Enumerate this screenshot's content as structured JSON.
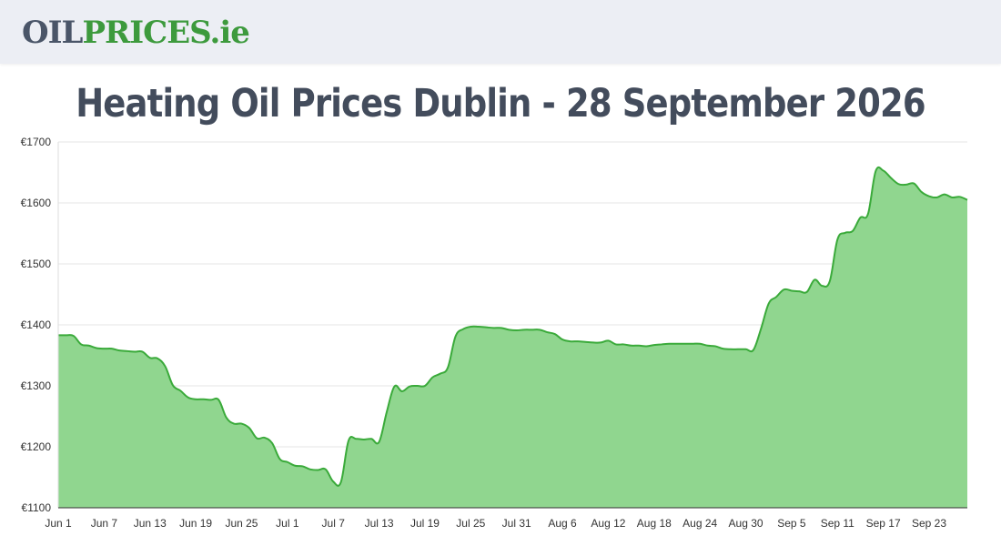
{
  "header": {
    "logo_part1": "OIL",
    "logo_part2": "PRICES",
    "logo_part3": ".ie"
  },
  "title": "Heating Oil Prices Dublin - 28 September 2026",
  "chart_data": {
    "type": "area",
    "title": "Heating Oil Prices Dublin - 28 September 2026",
    "xlabel": "",
    "ylabel": "",
    "ylim": [
      1100,
      1700
    ],
    "grid": true,
    "legend": "none",
    "colors": {
      "fill": "#90d68f",
      "line": "#3aaa3a",
      "grid": "#e6e6e6",
      "axis": "#333333"
    },
    "yticks": [
      1100,
      1200,
      1300,
      1400,
      1500,
      1600,
      1700
    ],
    "ytick_labels": [
      "€1100",
      "€1200",
      "€1300",
      "€1400",
      "€1500",
      "€1600",
      "€1700"
    ],
    "xticks": [
      "Jun 1",
      "Jun 7",
      "Jun 13",
      "Jun 19",
      "Jun 25",
      "Jul 1",
      "Jul 7",
      "Jul 13",
      "Jul 19",
      "Jul 25",
      "Jul 31",
      "Aug 6",
      "Aug 12",
      "Aug 18",
      "Aug 24",
      "Aug 30",
      "Sep 5",
      "Sep 11",
      "Sep 17",
      "Sep 23"
    ],
    "x": [
      "Jun 1",
      "Jun 2",
      "Jun 3",
      "Jun 4",
      "Jun 5",
      "Jun 6",
      "Jun 7",
      "Jun 8",
      "Jun 9",
      "Jun 10",
      "Jun 11",
      "Jun 12",
      "Jun 13",
      "Jun 14",
      "Jun 15",
      "Jun 16",
      "Jun 17",
      "Jun 18",
      "Jun 19",
      "Jun 20",
      "Jun 21",
      "Jun 22",
      "Jun 23",
      "Jun 24",
      "Jun 25",
      "Jun 26",
      "Jun 27",
      "Jun 28",
      "Jun 29",
      "Jun 30",
      "Jul 1",
      "Jul 2",
      "Jul 3",
      "Jul 4",
      "Jul 5",
      "Jul 6",
      "Jul 7",
      "Jul 8",
      "Jul 9",
      "Jul 10",
      "Jul 11",
      "Jul 12",
      "Jul 13",
      "Jul 14",
      "Jul 15",
      "Jul 16",
      "Jul 17",
      "Jul 18",
      "Jul 19",
      "Jul 20",
      "Jul 21",
      "Jul 22",
      "Jul 23",
      "Jul 24",
      "Jul 25",
      "Jul 26",
      "Jul 27",
      "Jul 28",
      "Jul 29",
      "Jul 30",
      "Jul 31",
      "Aug 1",
      "Aug 2",
      "Aug 3",
      "Aug 4",
      "Aug 5",
      "Aug 6",
      "Aug 7",
      "Aug 8",
      "Aug 9",
      "Aug 10",
      "Aug 11",
      "Aug 12",
      "Aug 13",
      "Aug 14",
      "Aug 15",
      "Aug 16",
      "Aug 17",
      "Aug 18",
      "Aug 19",
      "Aug 20",
      "Aug 21",
      "Aug 22",
      "Aug 23",
      "Aug 24",
      "Aug 25",
      "Aug 26",
      "Aug 27",
      "Aug 28",
      "Aug 29",
      "Aug 30",
      "Aug 31",
      "Sep 1",
      "Sep 2",
      "Sep 3",
      "Sep 4",
      "Sep 5",
      "Sep 6",
      "Sep 7",
      "Sep 8",
      "Sep 9",
      "Sep 10",
      "Sep 11",
      "Sep 12",
      "Sep 13",
      "Sep 14",
      "Sep 15",
      "Sep 16",
      "Sep 17",
      "Sep 18",
      "Sep 19",
      "Sep 20",
      "Sep 21",
      "Sep 22",
      "Sep 23",
      "Sep 24",
      "Sep 25",
      "Sep 26",
      "Sep 27",
      "Sep 28"
    ],
    "series": [
      {
        "values": [
          1383,
          1383,
          1382,
          1368,
          1366,
          1362,
          1361,
          1361,
          1358,
          1357,
          1356,
          1356,
          1346,
          1345,
          1332,
          1301,
          1292,
          1281,
          1278,
          1278,
          1277,
          1277,
          1248,
          1238,
          1238,
          1231,
          1214,
          1215,
          1206,
          1180,
          1175,
          1169,
          1168,
          1163,
          1162,
          1163,
          1143,
          1142,
          1210,
          1213,
          1212,
          1213,
          1208,
          1257,
          1299,
          1291,
          1299,
          1300,
          1300,
          1314,
          1320,
          1330,
          1381,
          1393,
          1397,
          1397,
          1396,
          1395,
          1395,
          1392,
          1391,
          1392,
          1392,
          1392,
          1388,
          1385,
          1376,
          1373,
          1373,
          1372,
          1371,
          1371,
          1374,
          1368,
          1368,
          1366,
          1366,
          1365,
          1367,
          1368,
          1369,
          1369,
          1369,
          1369,
          1369,
          1366,
          1365,
          1361,
          1360,
          1360,
          1360,
          1359,
          1394,
          1435,
          1446,
          1458,
          1456,
          1455,
          1454,
          1474,
          1464,
          1472,
          1540,
          1551,
          1554,
          1576,
          1582,
          1652,
          1653,
          1641,
          1631,
          1630,
          1632,
          1618,
          1611,
          1609,
          1614,
          1609,
          1610,
          1605
        ]
      }
    ]
  }
}
